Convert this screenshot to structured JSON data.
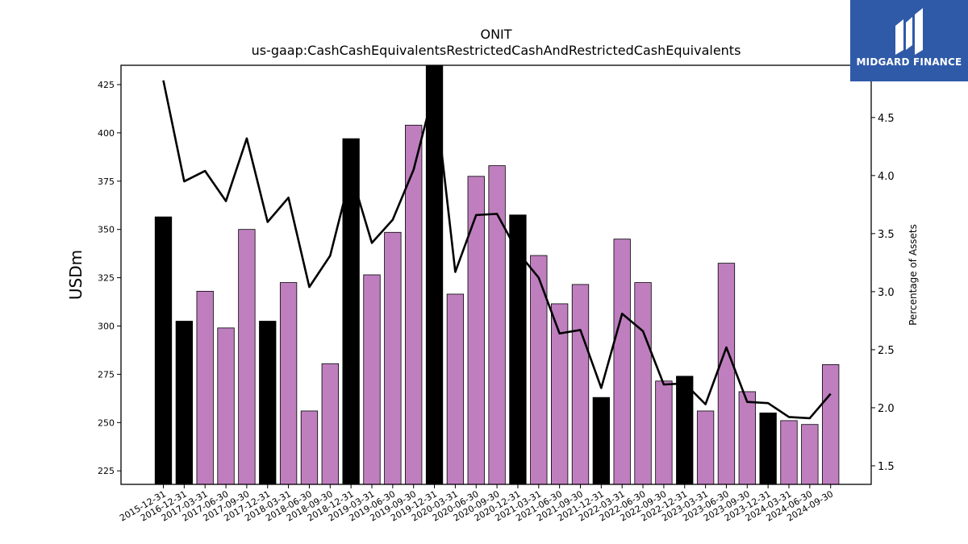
{
  "chart_data": {
    "type": "bar",
    "title": "ONIT",
    "subtitle": "us-gaap:CashCashEquivalentsRestrictedCashAndRestrictedCashEquivalents",
    "ylabel": "USDm",
    "y2label": "Percentage of Assets",
    "ylim": [
      218,
      435
    ],
    "y2lim": [
      1.34,
      4.95
    ],
    "yticks": [
      225,
      250,
      275,
      300,
      325,
      350,
      375,
      400,
      425
    ],
    "y2ticks": [
      1.5,
      2.0,
      2.5,
      3.0,
      3.5,
      4.0,
      4.5
    ],
    "y2ticklabels": [
      "1.5",
      "2.0",
      "2.5",
      "3.0",
      "3.5",
      "4.0",
      "4.5"
    ],
    "categories": [
      "2015-12-31",
      "2016-12-31",
      "2017-03-31",
      "2017-06-30",
      "2017-09-30",
      "2017-12-31",
      "2018-03-31",
      "2018-06-30",
      "2018-09-30",
      "2018-12-31",
      "2019-03-31",
      "2019-06-30",
      "2019-09-30",
      "2019-12-31",
      "2020-03-31",
      "2020-06-30",
      "2020-09-30",
      "2020-12-31",
      "2021-03-31",
      "2021-06-30",
      "2021-09-30",
      "2021-12-31",
      "2022-03-31",
      "2022-06-30",
      "2022-09-30",
      "2022-12-31",
      "2023-03-31",
      "2023-06-30",
      "2023-09-30",
      "2023-12-31",
      "2024-03-31",
      "2024-06-30",
      "2024-09-30"
    ],
    "series": [
      {
        "type": "bar",
        "values": [
          356.5,
          302.5,
          318,
          299,
          350,
          302.5,
          322.5,
          256,
          280.5,
          397,
          326.5,
          348.5,
          404,
          435,
          316.5,
          377.5,
          383,
          357.5,
          336.5,
          311.5,
          321.5,
          263,
          345,
          322.5,
          271.5,
          274,
          256,
          332.5,
          266,
          255,
          251,
          249,
          280
        ],
        "highlight": [
          true,
          true,
          false,
          false,
          false,
          true,
          false,
          false,
          false,
          true,
          false,
          false,
          false,
          true,
          false,
          false,
          false,
          true,
          false,
          false,
          false,
          true,
          false,
          false,
          false,
          true,
          false,
          false,
          false,
          true,
          false,
          false,
          false
        ],
        "color": "#bf7fbf",
        "highlight_color": "#000000"
      },
      {
        "type": "line",
        "axis": "right",
        "values": [
          4.82,
          3.95,
          4.04,
          3.78,
          4.32,
          3.6,
          3.81,
          3.04,
          3.31,
          4.02,
          3.42,
          3.62,
          4.05,
          4.75,
          3.17,
          3.66,
          3.67,
          3.34,
          3.12,
          2.64,
          2.67,
          2.17,
          2.81,
          2.66,
          2.2,
          2.21,
          2.03,
          2.52,
          2.05,
          2.04,
          1.92,
          1.91,
          2.12
        ],
        "color": "#000000"
      }
    ],
    "grid": false
  },
  "logo": {
    "text": "MIDGARD FINANCE",
    "background": "#2f5aa8"
  }
}
